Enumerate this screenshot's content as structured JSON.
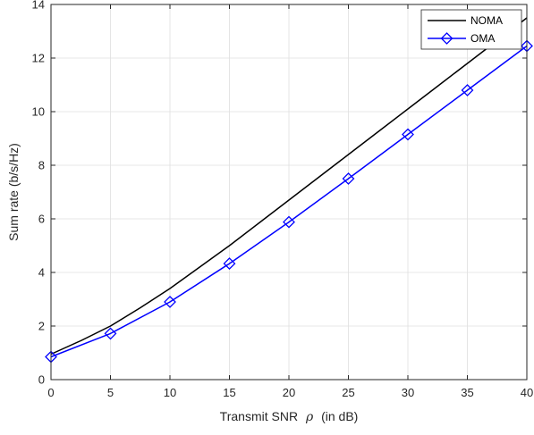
{
  "chart_data": {
    "type": "line",
    "xlabel_prefix": "Transmit SNR",
    "xlabel_symbol": "ρ",
    "xlabel_suffix": "(in dB)",
    "ylabel": "Sum rate (b/s/Hz)",
    "xlim": [
      0,
      40
    ],
    "ylim": [
      0,
      14
    ],
    "xticks": [
      0,
      5,
      10,
      15,
      20,
      25,
      30,
      35,
      40
    ],
    "yticks": [
      0,
      2,
      4,
      6,
      8,
      10,
      12,
      14
    ],
    "grid": true,
    "legend_position": "top-right",
    "series": [
      {
        "name": "NOMA",
        "color": "#000000",
        "marker": "none",
        "x": [
          0,
          2.5,
          5,
          7.5,
          10,
          12.5,
          15,
          17.5,
          20,
          22.5,
          25,
          27.5,
          30,
          32.5,
          35,
          37.5,
          40
        ],
        "values": [
          0.95,
          1.45,
          2.0,
          2.68,
          3.4,
          4.2,
          5.0,
          5.85,
          6.7,
          7.55,
          8.4,
          9.25,
          10.1,
          10.95,
          11.8,
          12.65,
          13.5
        ]
      },
      {
        "name": "OMA",
        "color": "#0000ff",
        "marker": "diamond",
        "x": [
          0,
          5,
          10,
          15,
          20,
          25,
          30,
          35,
          40
        ],
        "values": [
          0.85,
          1.72,
          2.9,
          4.33,
          5.88,
          7.5,
          9.15,
          10.8,
          12.45
        ]
      }
    ]
  }
}
